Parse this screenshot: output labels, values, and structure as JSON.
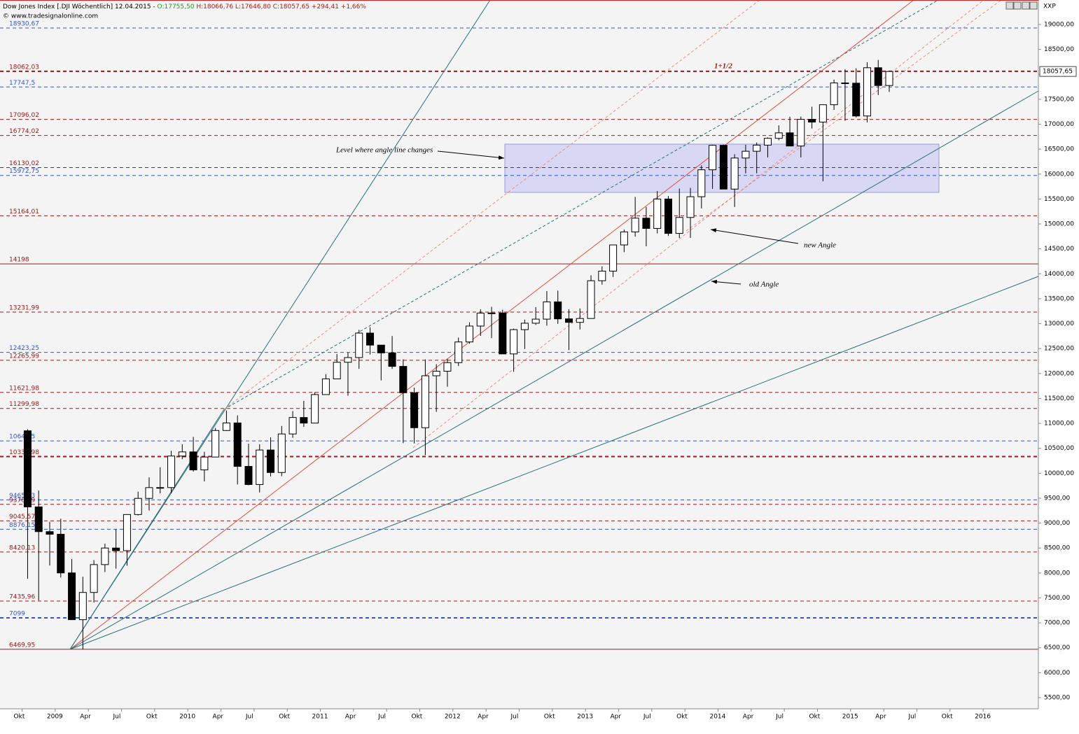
{
  "header": {
    "title": "Dow Jones Index [.DJI  Wöchentlich] 12.04.2015 - ",
    "open": "O:17755,50",
    "hlc": " H:18066,76 L:17646,80 C:18057,65 +294,41 +1,66%",
    "source": "© www.tradesignalonline.com",
    "symbol": "XXP"
  },
  "chart_data": {
    "type": "candlestick",
    "color": "#000000",
    "x": [
      "2008-10",
      "2008-11",
      "2008-12",
      "2009-01",
      "2009-02",
      "2009-03",
      "2009-04",
      "2009-05",
      "2009-06",
      "2009-07",
      "2009-08",
      "2009-09",
      "2009-10",
      "2009-11",
      "2009-12",
      "2010-01",
      "2010-02",
      "2010-03",
      "2010-04",
      "2010-05",
      "2010-06",
      "2010-07",
      "2010-08",
      "2010-09",
      "2010-10",
      "2010-11",
      "2010-12",
      "2011-01",
      "2011-02",
      "2011-03",
      "2011-04",
      "2011-05",
      "2011-06",
      "2011-07",
      "2011-08",
      "2011-09",
      "2011-10",
      "2011-11",
      "2011-12",
      "2012-01",
      "2012-02",
      "2012-03",
      "2012-04",
      "2012-05",
      "2012-06",
      "2012-07",
      "2012-08",
      "2012-09",
      "2012-10",
      "2012-11",
      "2012-12",
      "2013-01",
      "2013-02",
      "2013-03",
      "2013-04",
      "2013-05",
      "2013-06",
      "2013-07",
      "2013-08",
      "2013-09",
      "2013-10",
      "2013-11",
      "2013-12",
      "2014-01",
      "2014-02",
      "2014-03",
      "2014-04",
      "2014-05",
      "2014-06",
      "2014-07",
      "2014-08",
      "2014-09",
      "2014-10",
      "2014-11",
      "2014-12",
      "2015-01",
      "2015-02",
      "2015-03",
      "2015-04"
    ],
    "open": [
      10851,
      9325,
      8829,
      8776,
      8001,
      7063,
      7609,
      8168,
      8500,
      8447,
      9172,
      9496,
      9712,
      9713,
      10345,
      10428,
      10067,
      10325,
      10857,
      11009,
      10137,
      9774,
      10466,
      10015,
      10788,
      11118,
      11006,
      11578,
      11892,
      12226,
      12320,
      12811,
      12570,
      12414,
      12143,
      11614,
      10913,
      11955,
      12046,
      12218,
      12633,
      12952,
      13212,
      13214,
      12393,
      12880,
      13009,
      13091,
      13437,
      13096,
      13026,
      13104,
      13861,
      14054,
      14579,
      14840,
      15116,
      14910,
      15500,
      14810,
      15130,
      15546,
      16086,
      16577,
      15699,
      16322,
      16458,
      16581,
      16717,
      16827,
      16563,
      17098,
      17043,
      17391,
      17828,
      17823,
      17165,
      18133,
      17776
    ],
    "high": [
      10882,
      9654,
      9026,
      9088,
      8280,
      7924,
      8258,
      8588,
      8877,
      9172,
      9630,
      9918,
      10120,
      10450,
      10580,
      10730,
      10430,
      10908,
      11258,
      11160,
      10594,
      10581,
      10720,
      10948,
      11247,
      11451,
      11625,
      11986,
      12391,
      12419,
      12876,
      12929,
      12570,
      12753,
      12284,
      11716,
      12284,
      12188,
      12294,
      12721,
      13027,
      13289,
      13338,
      13279,
      12901,
      13081,
      13331,
      13653,
      13662,
      13290,
      13305,
      13970,
      14149,
      14586,
      14888,
      15542,
      15341,
      15659,
      15560,
      15709,
      15722,
      16174,
      16588,
      16589,
      16398,
      16588,
      16632,
      16736,
      16978,
      17151,
      17153,
      17350,
      17395,
      17895,
      18103,
      18121,
      18244,
      18289,
      18066.76
    ],
    "low": [
      7882,
      7449,
      8149,
      7909,
      7063,
      6469.95,
      7406,
      8019,
      8087,
      8146,
      9153,
      9252,
      9598,
      9602,
      10281,
      10033,
      9836,
      10320,
      10847,
      9774,
      9758,
      9614,
      9936,
      9941,
      10711,
      10929,
      11006,
      11578,
      11892,
      11555,
      12093,
      12381,
      11862,
      12093,
      10604,
      10597,
      10362,
      11231,
      11735,
      12150,
      12597,
      12755,
      12710,
      12393,
      12035,
      12492,
      12977,
      12959,
      12996,
      12471,
      12883,
      13104,
      13784,
      13937,
      14434,
      14746,
      14551,
      14810,
      14760,
      14719,
      14720,
      15311,
      15703,
      15698,
      15340,
      16015,
      16016,
      16333,
      16678,
      16563,
      16334,
      16915,
      15855,
      17288,
      17068,
      17136,
      17037,
      17585,
      17646.8
    ],
    "close": [
      9325,
      8829,
      8776,
      8001,
      7063,
      7609,
      8168,
      8500,
      8447,
      9172,
      9496,
      9712,
      9713,
      10345,
      10428,
      10067,
      10325,
      10857,
      11009,
      10137,
      9774,
      10466,
      10015,
      10788,
      11118,
      11006,
      11578,
      11892,
      12226,
      12320,
      12811,
      12570,
      12414,
      12143,
      11614,
      10913,
      11955,
      12046,
      12218,
      12633,
      12952,
      13212,
      13214,
      12393,
      12880,
      13009,
      13091,
      13437,
      13096,
      13026,
      13104,
      13861,
      14054,
      14579,
      14840,
      15116,
      14910,
      15500,
      14810,
      15130,
      15546,
      16086,
      16577,
      15699,
      16322,
      16458,
      16581,
      16717,
      16827,
      16563,
      17098,
      17043,
      17391,
      17828,
      17823,
      17165,
      18133,
      17776,
      18057.65
    ],
    "xlim": [
      "2008-08",
      "2016-06"
    ],
    "xticks": [
      {
        "value": "2008-10",
        "label": "Okt"
      },
      {
        "value": "2009-01",
        "label": "2009"
      },
      {
        "value": "2009-04",
        "label": "Apr"
      },
      {
        "value": "2009-07",
        "label": "Jul"
      },
      {
        "value": "2009-10",
        "label": "Okt"
      },
      {
        "value": "2010-01",
        "label": "2010"
      },
      {
        "value": "2010-04",
        "label": "Apr"
      },
      {
        "value": "2010-07",
        "label": "Jul"
      },
      {
        "value": "2010-10",
        "label": "Okt"
      },
      {
        "value": "2011-01",
        "label": "2011"
      },
      {
        "value": "2011-04",
        "label": "Apr"
      },
      {
        "value": "2011-07",
        "label": "Jul"
      },
      {
        "value": "2011-10",
        "label": "Okt"
      },
      {
        "value": "2012-01",
        "label": "2012"
      },
      {
        "value": "2012-04",
        "label": "Apr"
      },
      {
        "value": "2012-07",
        "label": "Jul"
      },
      {
        "value": "2012-10",
        "label": "Okt"
      },
      {
        "value": "2013-01",
        "label": "2013"
      },
      {
        "value": "2013-04",
        "label": "Apr"
      },
      {
        "value": "2013-07",
        "label": "Jul"
      },
      {
        "value": "2013-10",
        "label": "Okt"
      },
      {
        "value": "2014-01",
        "label": "2014"
      },
      {
        "value": "2014-04",
        "label": "Apr"
      },
      {
        "value": "2014-07",
        "label": "Jul"
      },
      {
        "value": "2014-10",
        "label": "Okt"
      },
      {
        "value": "2015-01",
        "label": "2015"
      },
      {
        "value": "2015-04",
        "label": "Apr"
      },
      {
        "value": "2015-07",
        "label": "Jul"
      },
      {
        "value": "2015-10",
        "label": "Okt"
      },
      {
        "value": "2016-01",
        "label": "2016"
      }
    ],
    "ylim": [
      5500,
      19000
    ],
    "yticks": [
      {
        "value": 5500,
        "label": "5500,00"
      },
      {
        "value": 6000,
        "label": "6000,00"
      },
      {
        "value": 6500,
        "label": "6500,00"
      },
      {
        "value": 7000,
        "label": "7000,00"
      },
      {
        "value": 7500,
        "label": "7500,00"
      },
      {
        "value": 8000,
        "label": "8000,00"
      },
      {
        "value": 8500,
        "label": "8500,00"
      },
      {
        "value": 9000,
        "label": "9000,00"
      },
      {
        "value": 9500,
        "label": "9500,00"
      },
      {
        "value": 10000,
        "label": "10000,00"
      },
      {
        "value": 10500,
        "label": "10500,00"
      },
      {
        "value": 11000,
        "label": "11000,00"
      },
      {
        "value": 11500,
        "label": "11500,00"
      },
      {
        "value": 12000,
        "label": "12000,00"
      },
      {
        "value": 12500,
        "label": "12500,00"
      },
      {
        "value": 13000,
        "label": "13000,00"
      },
      {
        "value": 13500,
        "label": "13500,00"
      },
      {
        "value": 14000,
        "label": "14000,00"
      },
      {
        "value": 14500,
        "label": "14500,00"
      },
      {
        "value": 15000,
        "label": "15000,00"
      },
      {
        "value": 15500,
        "label": "15500,00"
      },
      {
        "value": 16000,
        "label": "16000,00"
      },
      {
        "value": 16500,
        "label": "16500,00"
      },
      {
        "value": 17000,
        "label": "17000,00"
      },
      {
        "value": 17500,
        "label": "17500,00"
      },
      {
        "value": 18000,
        "label": "18000,00"
      },
      {
        "value": 18500,
        "label": "18500,00"
      },
      {
        "value": 19000,
        "label": "19000,00"
      }
    ],
    "last_price": {
      "value": 18057.65,
      "label": "18057,65"
    },
    "levels": [
      {
        "value": 18930.67,
        "label": "18930,67",
        "color": "#3355cc",
        "width": 1
      },
      {
        "value": 18062.03,
        "label": "18062,03",
        "color": "#a01818",
        "width": 2
      },
      {
        "value": 17747.5,
        "label": "17747,5",
        "color": "#3355cc",
        "width": 1
      },
      {
        "value": 17096.02,
        "label": "17096,02",
        "color": "#a01818",
        "width": 1
      },
      {
        "value": 16774.02,
        "label": "16774,02",
        "color": "#a01818",
        "width": 1
      },
      {
        "value": 16130.02,
        "label": "16130,02",
        "color": "#a01818",
        "width": 1
      },
      {
        "value": 15972.75,
        "label": "15972,75",
        "color": "#3355cc",
        "width": 1
      },
      {
        "value": 15164.01,
        "label": "15164,01",
        "color": "#a01818",
        "width": 1
      },
      {
        "value": 14198,
        "label": "14198",
        "color": "#a01818",
        "width": 1,
        "solid": true
      },
      {
        "value": 13231.99,
        "label": "13231,99",
        "color": "#a01818",
        "width": 1
      },
      {
        "value": 12423.25,
        "label": "12423,25",
        "color": "#3355cc",
        "width": 1
      },
      {
        "value": 12265.99,
        "label": "12265,99",
        "color": "#a01818",
        "width": 1
      },
      {
        "value": 11621.98,
        "label": "11621,98",
        "color": "#a01818",
        "width": 1
      },
      {
        "value": 11299.98,
        "label": "11299,98",
        "color": "#a01818",
        "width": 1
      },
      {
        "value": 10648.5,
        "label": "10648,5",
        "color": "#3355cc",
        "width": 1
      },
      {
        "value": 10333.98,
        "label": "10333,98",
        "color": "#a01818",
        "width": 2
      },
      {
        "value": 9465.33,
        "label": "9465,33",
        "color": "#3355cc",
        "width": 1
      },
      {
        "value": 9376.19,
        "label": "9376,19",
        "color": "#a01818",
        "width": 1
      },
      {
        "value": 9045.57,
        "label": "9045,57",
        "color": "#a01818",
        "width": 1
      },
      {
        "value": 8876.15,
        "label": "8876,15",
        "color": "#3355cc",
        "width": 1
      },
      {
        "value": 8420.13,
        "label": "8420,13",
        "color": "#a01818",
        "width": 1
      },
      {
        "value": 7435.96,
        "label": "7435,96",
        "color": "#a01818",
        "width": 1
      },
      {
        "value": 7099,
        "label": "7099",
        "color": "#3355cc",
        "width": 2
      },
      {
        "value": 6469.95,
        "label": "6469,95",
        "color": "#a01818",
        "width": 1,
        "solid": true
      }
    ],
    "annotations": [
      "1+1/2",
      "Level where angle line changes",
      "new Angle",
      "old Angle"
    ]
  }
}
